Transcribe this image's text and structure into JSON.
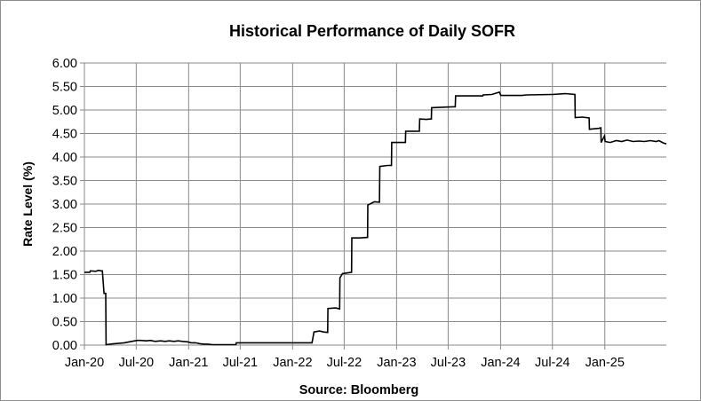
{
  "chart_data": {
    "type": "line",
    "title": "Historical Performance of Daily SOFR",
    "xlabel": "Source: Bloomberg",
    "ylabel": "Rate Level (%)",
    "ylim": [
      0,
      6
    ],
    "y_ticks": [
      "0.00",
      "0.50",
      "1.00",
      "1.50",
      "2.00",
      "2.50",
      "3.00",
      "3.50",
      "4.00",
      "4.50",
      "5.00",
      "5.50",
      "6.00"
    ],
    "x_ticks": [
      "Jan-20",
      "Jul-20",
      "Jan-21",
      "Jul-21",
      "Jan-22",
      "Jul-22",
      "Jan-23",
      "Jul-23",
      "Jan-24",
      "Jul-24",
      "Jan-25"
    ],
    "grid": true,
    "legend": "none",
    "series": [
      {
        "x": [
          "2020-01-01",
          "2020-01-20",
          "2020-01-22",
          "2020-02-10",
          "2020-02-20",
          "2020-02-28",
          "2020-03-04",
          "2020-03-10",
          "2020-03-16",
          "2020-03-17",
          "2020-04-15",
          "2020-05-20",
          "2020-06-15",
          "2020-07-05",
          "2020-07-15",
          "2020-08-05",
          "2020-08-20",
          "2020-09-05",
          "2020-09-25",
          "2020-10-10",
          "2020-10-25",
          "2020-11-10",
          "2020-11-25",
          "2020-12-10",
          "2020-12-28",
          "2021-01-10",
          "2021-01-25",
          "2021-02-10",
          "2021-02-25",
          "2021-03-10",
          "2021-03-25",
          "2021-04-15",
          "2021-05-10",
          "2021-06-16",
          "2021-06-17",
          "2021-09-15",
          "2021-12-15",
          "2022-03-10",
          "2022-03-17",
          "2022-04-05",
          "2022-04-20",
          "2022-05-04",
          "2022-05-05",
          "2022-06-01",
          "2022-06-15",
          "2022-06-16",
          "2022-06-25",
          "2022-07-27",
          "2022-07-28",
          "2022-08-25",
          "2022-09-21",
          "2022-09-22",
          "2022-10-15",
          "2022-11-02",
          "2022-11-03",
          "2022-12-01",
          "2022-12-14",
          "2022-12-15",
          "2023-01-15",
          "2023-02-01",
          "2023-02-02",
          "2023-03-01",
          "2023-03-22",
          "2023-03-23",
          "2023-04-15",
          "2023-05-03",
          "2023-05-04",
          "2023-06-15",
          "2023-07-26",
          "2023-07-27",
          "2023-09-15",
          "2023-10-31",
          "2023-11-01",
          "2023-12-01",
          "2023-12-28",
          "2024-01-02",
          "2024-01-10",
          "2024-03-15",
          "2024-04-01",
          "2024-06-28",
          "2024-07-01",
          "2024-08-15",
          "2024-09-18",
          "2024-09-19",
          "2024-10-15",
          "2024-11-07",
          "2024-11-08",
          "2024-12-10",
          "2024-12-18",
          "2024-12-19",
          "2024-12-31",
          "2025-01-02",
          "2025-01-20",
          "2025-02-10",
          "2025-03-01",
          "2025-03-20",
          "2025-04-10",
          "2025-05-01",
          "2025-05-20",
          "2025-06-10",
          "2025-06-30",
          "2025-07-10",
          "2025-07-25",
          "2025-08-05"
        ],
        "values": [
          1.55,
          1.55,
          1.58,
          1.57,
          1.59,
          1.58,
          1.58,
          1.1,
          1.1,
          0.01,
          0.03,
          0.05,
          0.08,
          0.1,
          0.1,
          0.09,
          0.1,
          0.08,
          0.09,
          0.08,
          0.09,
          0.08,
          0.09,
          0.08,
          0.07,
          0.05,
          0.05,
          0.03,
          0.02,
          0.02,
          0.01,
          0.01,
          0.01,
          0.01,
          0.05,
          0.05,
          0.05,
          0.05,
          0.28,
          0.3,
          0.28,
          0.27,
          0.78,
          0.79,
          0.77,
          1.43,
          1.52,
          1.55,
          2.28,
          2.28,
          2.29,
          2.98,
          3.05,
          3.04,
          3.8,
          3.82,
          3.82,
          4.31,
          4.31,
          4.31,
          4.55,
          4.55,
          4.55,
          4.81,
          4.8,
          4.81,
          5.05,
          5.06,
          5.07,
          5.3,
          5.3,
          5.3,
          5.32,
          5.33,
          5.38,
          5.31,
          5.31,
          5.31,
          5.32,
          5.33,
          5.33,
          5.35,
          5.33,
          4.84,
          4.85,
          4.83,
          4.59,
          4.61,
          4.62,
          4.31,
          4.45,
          4.33,
          4.31,
          4.35,
          4.33,
          4.36,
          4.33,
          4.34,
          4.33,
          4.35,
          4.33,
          4.35,
          4.3,
          4.28
        ]
      }
    ]
  }
}
